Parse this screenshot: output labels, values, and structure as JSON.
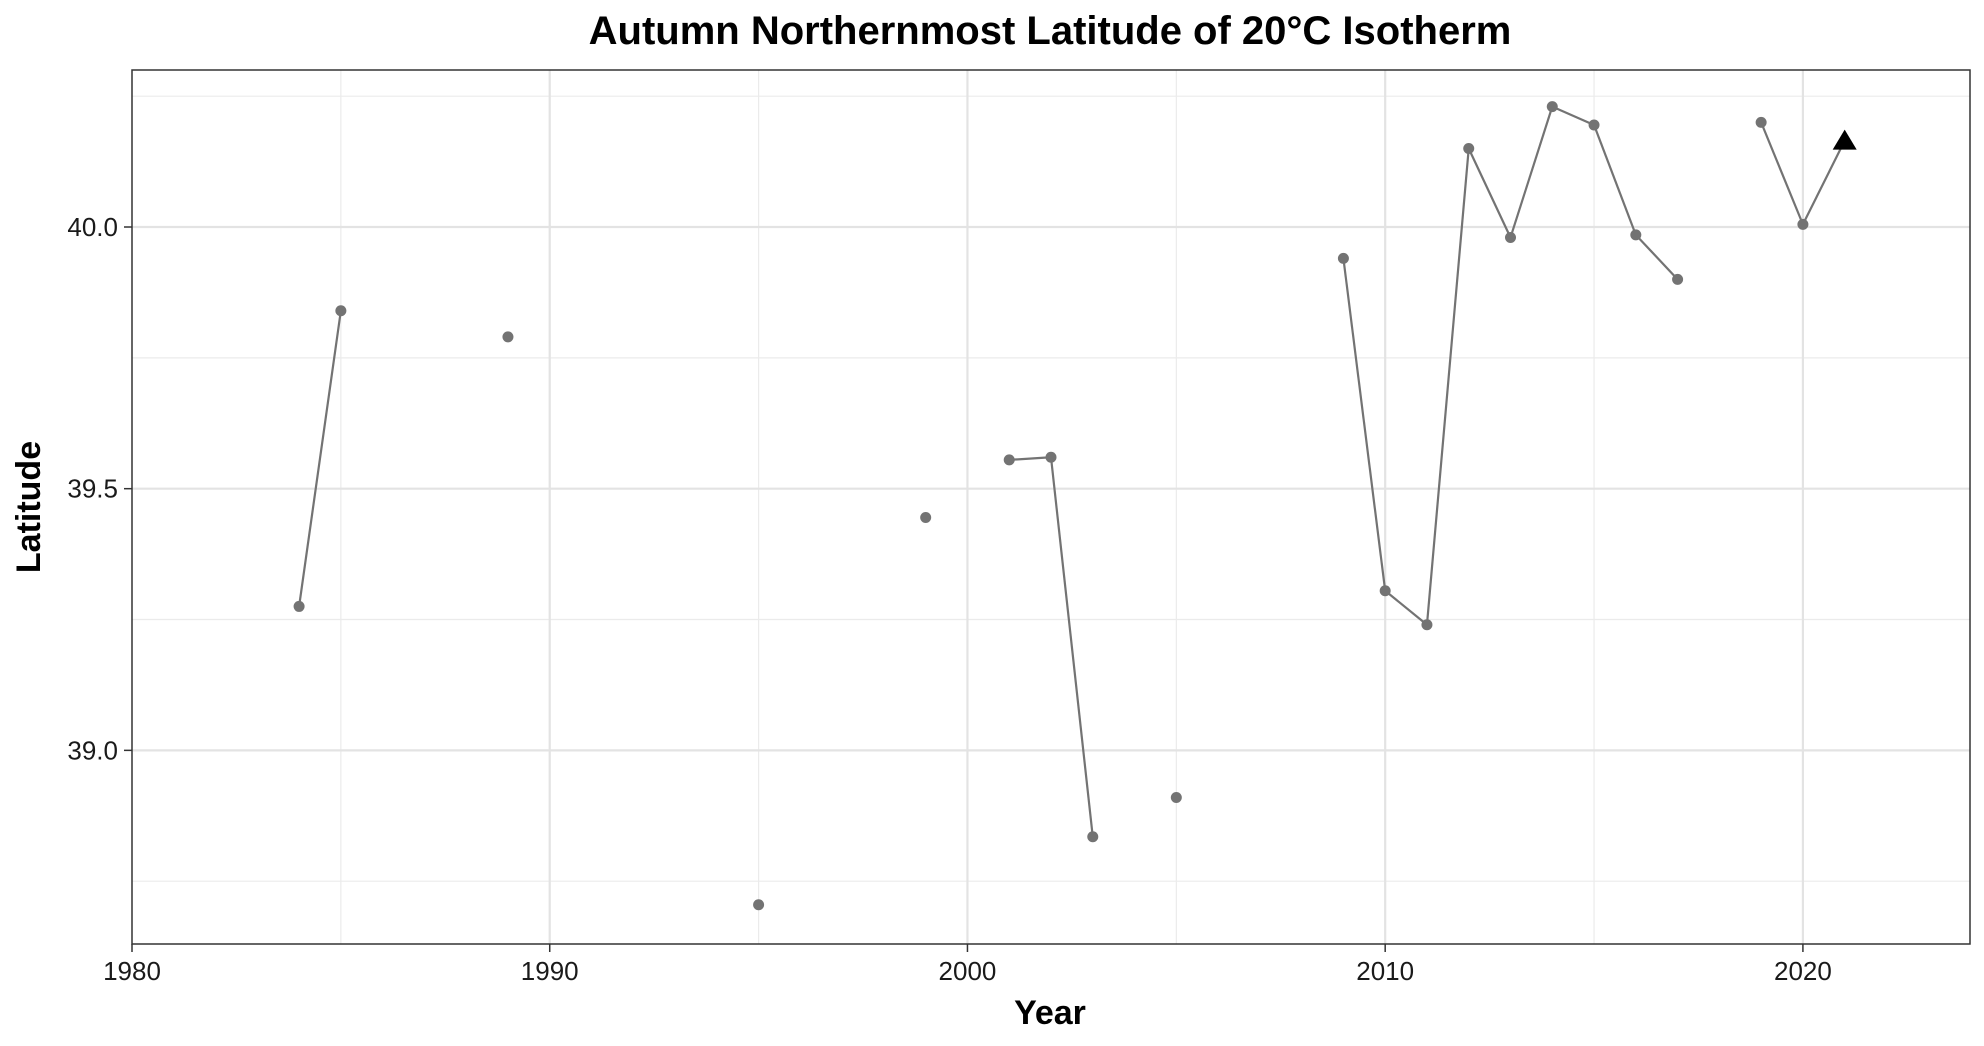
{
  "chart_data": {
    "type": "line",
    "title": "Autumn Northernmost Latitude of 20°C Isotherm",
    "xlabel": "Year",
    "ylabel": "Latitude",
    "xlim": [
      1980,
      2024
    ],
    "ylim": [
      38.63,
      40.3
    ],
    "x_ticks": [
      1980,
      1990,
      2000,
      2010,
      2020
    ],
    "y_ticks": [
      39.0,
      39.5,
      40.0
    ],
    "y_tick_labels": [
      "39.0",
      "39.5",
      "40.0"
    ],
    "grid": true,
    "legend": "none",
    "series": [
      {
        "marker": "circle",
        "color": "#737373",
        "points": [
          {
            "x": 1984,
            "y": 39.275
          },
          {
            "x": 1985,
            "y": 39.84
          },
          {
            "x": 1989,
            "y": 39.79
          },
          {
            "x": 1995,
            "y": 38.705
          },
          {
            "x": 1999,
            "y": 39.445
          },
          {
            "x": 2001,
            "y": 39.555
          },
          {
            "x": 2002,
            "y": 39.56
          },
          {
            "x": 2003,
            "y": 38.835
          },
          {
            "x": 2005,
            "y": 38.91
          },
          {
            "x": 2009,
            "y": 39.94
          },
          {
            "x": 2010,
            "y": 39.305
          },
          {
            "x": 2011,
            "y": 39.24
          },
          {
            "x": 2012,
            "y": 40.15
          },
          {
            "x": 2013,
            "y": 39.98
          },
          {
            "x": 2014,
            "y": 40.23
          },
          {
            "x": 2015,
            "y": 40.195
          },
          {
            "x": 2016,
            "y": 39.985
          },
          {
            "x": 2017,
            "y": 39.9
          },
          {
            "x": 2019,
            "y": 40.2
          },
          {
            "x": 2020,
            "y": 40.005
          },
          {
            "x": 2021,
            "y": 40.165,
            "marker": "triangle",
            "color": "#000000"
          }
        ]
      }
    ]
  }
}
